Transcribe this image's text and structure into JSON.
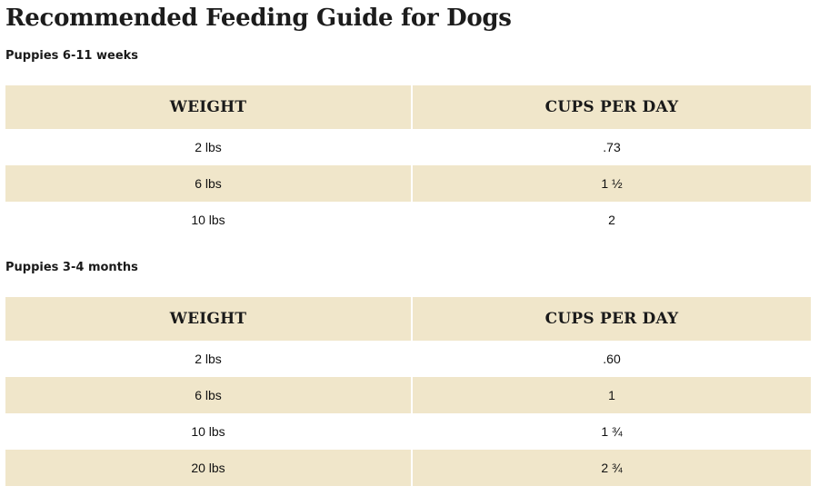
{
  "title": "Recommended Feeding Guide for Dogs",
  "sections": [
    {
      "heading": "Puppies 6-11 weeks",
      "columns": [
        "WEIGHT",
        "CUPS PER DAY"
      ],
      "rows": [
        [
          "2 lbs",
          ".73"
        ],
        [
          "6 lbs",
          "1 ½"
        ],
        [
          "10 lbs",
          "2"
        ]
      ]
    },
    {
      "heading": "Puppies 3-4 months",
      "columns": [
        "WEIGHT",
        "CUPS PER DAY"
      ],
      "rows": [
        [
          "2 lbs",
          ".60"
        ],
        [
          "6 lbs",
          "1"
        ],
        [
          "10 lbs",
          "1 ¾"
        ],
        [
          "20 lbs",
          "2 ¾"
        ]
      ]
    }
  ],
  "colors": {
    "header_bg": "#f0e6ca",
    "stripe_bg": "#f0e6ca",
    "row_bg": "#ffffff",
    "text": "#1a1a1a"
  }
}
